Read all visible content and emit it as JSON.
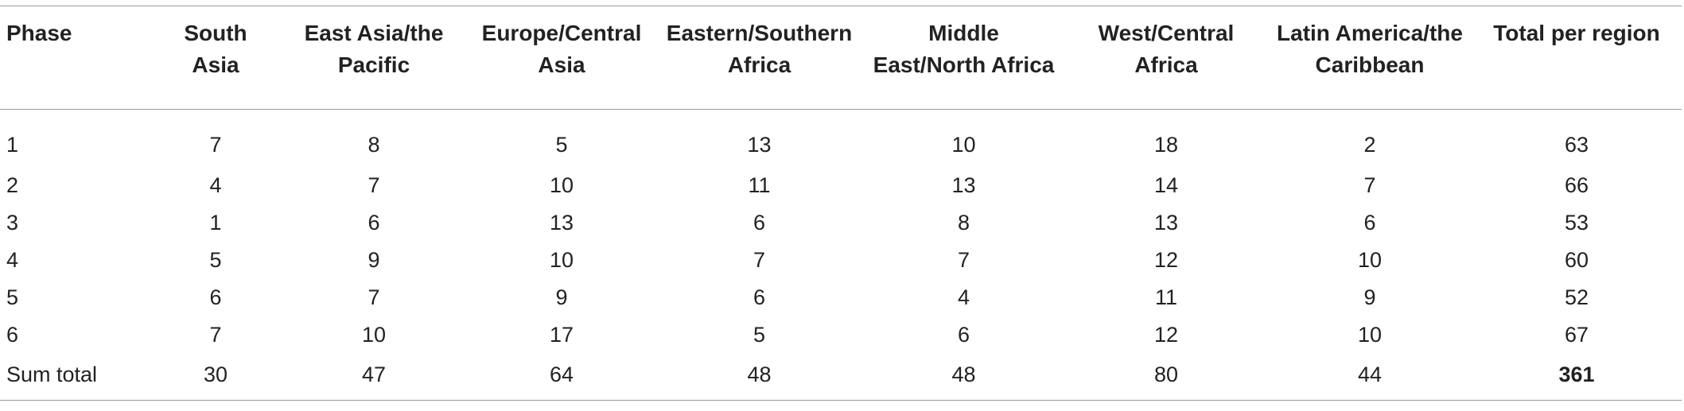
{
  "table": {
    "columns": [
      "Phase",
      "South Asia",
      "East Asia/the Pacific",
      "Europe/Central Asia",
      "Eastern/Southern Africa",
      "Middle East/North Africa",
      "West/Central Africa",
      "Latin America/the Caribbean",
      "Total per region"
    ],
    "rows": [
      [
        1,
        7,
        8,
        5,
        13,
        10,
        18,
        2,
        63
      ],
      [
        2,
        4,
        7,
        10,
        11,
        13,
        14,
        7,
        66
      ],
      [
        3,
        1,
        6,
        13,
        6,
        8,
        13,
        6,
        53
      ],
      [
        4,
        5,
        9,
        10,
        7,
        7,
        12,
        10,
        60
      ],
      [
        5,
        6,
        7,
        9,
        6,
        4,
        11,
        9,
        52
      ],
      [
        6,
        7,
        10,
        17,
        5,
        6,
        12,
        10,
        67
      ],
      [
        "Sum total",
        30,
        47,
        64,
        48,
        48,
        80,
        44,
        361
      ]
    ]
  }
}
